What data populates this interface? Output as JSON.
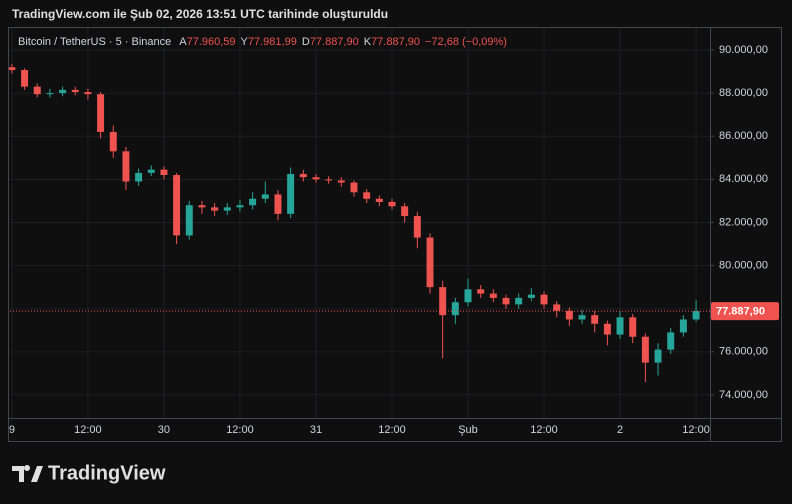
{
  "caption": "TradingView.com ile Şub 02, 2026 13:51 UTC tarihinde oluşturuldu",
  "logo": "TradingView",
  "chart_data": {
    "type": "candlestick",
    "title": "Bitcoin / TetherUS · 5 · Binance",
    "ohlc_header": [
      {
        "key": "A",
        "value": "77.960,59"
      },
      {
        "key": "Y",
        "value": "77.981,99"
      },
      {
        "key": "D",
        "value": "77.887,90"
      },
      {
        "key": "K",
        "value": "77.887,90"
      }
    ],
    "change": "−72,68 (−0,09%)",
    "up_color": "#26a69a",
    "down_color": "#ef5350",
    "x": [
      0,
      2,
      4,
      6,
      8,
      10,
      12,
      14,
      16,
      18,
      20,
      22,
      24,
      26,
      28,
      30,
      32,
      34,
      36,
      38,
      40,
      42,
      44,
      46,
      48,
      50,
      52,
      54,
      56,
      58,
      60,
      62,
      64,
      66,
      68,
      70,
      72,
      74,
      76,
      78,
      80,
      82,
      84,
      86,
      88,
      90,
      92,
      94,
      96,
      98,
      100,
      102,
      104,
      106,
      108
    ],
    "open": [
      89200,
      89070,
      88300,
      87950,
      88000,
      88150,
      88050,
      87950,
      86200,
      85300,
      83900,
      84300,
      84450,
      84200,
      81400,
      82800,
      82700,
      82550,
      82700,
      82800,
      83100,
      83300,
      82400,
      84250,
      84100,
      84000,
      83950,
      83850,
      83400,
      83100,
      82950,
      82750,
      82300,
      81300,
      79000,
      77700,
      78300,
      78900,
      78700,
      78500,
      78200,
      78500,
      78650,
      78200,
      77900,
      77500,
      77700,
      77300,
      76800,
      77600,
      76700,
      75500,
      76100,
      76900,
      77500
    ],
    "high": [
      89350,
      89150,
      88450,
      88200,
      88300,
      88300,
      88200,
      88050,
      86500,
      85500,
      84500,
      84650,
      84600,
      84300,
      83000,
      83000,
      82900,
      82900,
      83050,
      83400,
      83900,
      83500,
      84550,
      84450,
      84250,
      84150,
      84100,
      83950,
      83550,
      83250,
      83100,
      82900,
      82500,
      81500,
      79300,
      78500,
      79400,
      79100,
      78900,
      78650,
      78700,
      78950,
      78800,
      78350,
      78050,
      77950,
      77900,
      77450,
      77900,
      77750,
      76850,
      76400,
      77100,
      77700,
      78400
    ],
    "low": [
      88900,
      88150,
      87800,
      87800,
      87850,
      87900,
      87700,
      85900,
      85000,
      83500,
      83700,
      84150,
      84000,
      81000,
      81200,
      82400,
      82300,
      82350,
      82500,
      82600,
      82900,
      82100,
      82200,
      83900,
      83850,
      83800,
      83650,
      83200,
      82900,
      82750,
      82600,
      82000,
      80800,
      78700,
      75700,
      77300,
      78100,
      78500,
      78300,
      78000,
      78000,
      78350,
      78000,
      77600,
      77200,
      77300,
      76900,
      76300,
      76600,
      76400,
      74600,
      74900,
      75900,
      76700,
      77400
    ],
    "close": [
      89070,
      88300,
      87950,
      88000,
      88150,
      88050,
      87950,
      86200,
      85300,
      83900,
      84300,
      84450,
      84200,
      81400,
      82800,
      82700,
      82550,
      82700,
      82800,
      83100,
      83300,
      82400,
      84250,
      84100,
      84000,
      83950,
      83850,
      83400,
      83100,
      82950,
      82750,
      82300,
      81300,
      79000,
      77700,
      78300,
      78900,
      78700,
      78500,
      78200,
      78500,
      78650,
      78200,
      77900,
      77500,
      77700,
      77300,
      76800,
      77600,
      76700,
      75500,
      76100,
      76900,
      77500,
      77887.9
    ],
    "last_price": 77887.9,
    "last_price_label": "77.887,90",
    "xlim": [
      -0.3,
      110.2
    ],
    "xticks": [
      {
        "value": 0,
        "label": "9"
      },
      {
        "value": 12,
        "label": "12:00"
      },
      {
        "value": 24,
        "label": "30"
      },
      {
        "value": 36,
        "label": "12:00"
      },
      {
        "value": 48,
        "label": "31"
      },
      {
        "value": 60,
        "label": "12:00"
      },
      {
        "value": 72,
        "label": "Şub"
      },
      {
        "value": 84,
        "label": "12:00"
      },
      {
        "value": 96,
        "label": "2"
      },
      {
        "value": 108,
        "label": "12:00"
      }
    ],
    "ylim": [
      72930,
      91020
    ],
    "yticks": [
      {
        "value": 74000,
        "label": "74.000,00"
      },
      {
        "value": 76000,
        "label": "76.000,00"
      },
      {
        "value": 78000,
        "label": "78.000,00"
      },
      {
        "value": 80000,
        "label": "80.000,00"
      },
      {
        "value": 82000,
        "label": "82.000,00"
      },
      {
        "value": 84000,
        "label": "84.000,00"
      },
      {
        "value": 86000,
        "label": "86.000,00"
      },
      {
        "value": 88000,
        "label": "88.000,00"
      },
      {
        "value": 90000,
        "label": "90.000,00"
      }
    ],
    "grid": true
  }
}
